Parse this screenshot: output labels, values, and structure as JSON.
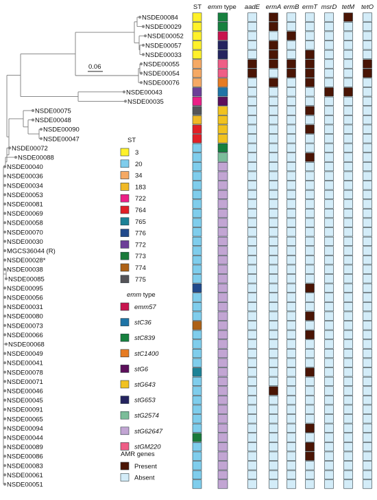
{
  "scale_bar_label": "0.06",
  "column_headers": {
    "st": "ST",
    "emm_a": "emm",
    "emm_b": " type",
    "amr": [
      "aadE",
      "ermA",
      "ermB",
      "ermT",
      "msrD",
      "tetM",
      "tetO"
    ]
  },
  "colors": {
    "present": "#4a1505",
    "absent": "#d3ecf8",
    "cell_border": "#2a3a40",
    "tree": "#7a7a7a",
    "leaf_dot": "#8a8a8a"
  },
  "st_colors": {
    "3": "#fff12a",
    "20": "#7fcdec",
    "34": "#f5a964",
    "183": "#f0b926",
    "722": "#ec1f86",
    "764": "#e11f26",
    "765": "#1c8296",
    "776": "#214a8c",
    "772": "#6c3f98",
    "773": "#1a7a3a",
    "774": "#ad6116",
    "775": "#555458"
  },
  "emm_colors": {
    "emm57": "#c8144e",
    "stC36": "#1e74a6",
    "stC839": "#16803e",
    "stC1400": "#e67b22",
    "stG6": "#5c0f5a",
    "stG643": "#f1c21f",
    "stG653": "#25245f",
    "stG2574": "#7bbd9a",
    "stG62647": "#c2a5d3",
    "stGM220": "#ef5d86"
  },
  "isolates": [
    {
      "name": "NSDE00084",
      "st": "3",
      "emm": "stC839",
      "amr": [
        0,
        1,
        0,
        0,
        0,
        1,
        0
      ]
    },
    {
      "name": "NSDE00029",
      "st": "3",
      "emm": "stC839",
      "amr": [
        0,
        1,
        0,
        0,
        0,
        0,
        0
      ]
    },
    {
      "name": "NSDE00052",
      "st": "3",
      "emm": "emm57",
      "amr": [
        0,
        0,
        1,
        0,
        0,
        0,
        0
      ]
    },
    {
      "name": "NSDE00057",
      "st": "3",
      "emm": "stG653",
      "amr": [
        0,
        1,
        0,
        0,
        0,
        0,
        0
      ]
    },
    {
      "name": "NSDE00033",
      "st": "3",
      "emm": "stG653",
      "amr": [
        0,
        1,
        0,
        1,
        0,
        0,
        0
      ]
    },
    {
      "name": "NSDE00055",
      "st": "34",
      "emm": "stGM220",
      "amr": [
        1,
        1,
        1,
        1,
        0,
        0,
        1
      ]
    },
    {
      "name": "NSDE00054",
      "st": "34",
      "emm": "stGM220",
      "amr": [
        1,
        0,
        1,
        1,
        0,
        0,
        1
      ]
    },
    {
      "name": "NSDE00076",
      "st": "34",
      "emm": "stC1400",
      "amr": [
        0,
        1,
        0,
        1,
        0,
        0,
        0
      ]
    },
    {
      "name": "NSDE00043",
      "st": "772",
      "emm": "stC36",
      "amr": [
        0,
        0,
        0,
        0,
        1,
        1,
        0
      ]
    },
    {
      "name": "NSDE00035",
      "st": "722",
      "emm": "stG6",
      "amr": [
        0,
        0,
        0,
        0,
        0,
        0,
        0
      ]
    },
    {
      "name": "NSDE00075",
      "st": "775",
      "emm": "stG643",
      "amr": [
        0,
        0,
        0,
        1,
        0,
        0,
        0
      ]
    },
    {
      "name": "NSDE00048",
      "st": "183",
      "emm": "stG643",
      "amr": [
        0,
        0,
        0,
        0,
        0,
        0,
        0
      ]
    },
    {
      "name": "NSDE00090",
      "st": "764",
      "emm": "stG643",
      "amr": [
        0,
        0,
        0,
        1,
        0,
        0,
        0
      ]
    },
    {
      "name": "NSDE00047",
      "st": "764",
      "emm": "stG643",
      "amr": [
        0,
        0,
        0,
        0,
        0,
        0,
        0
      ]
    },
    {
      "name": "NSDE00072",
      "st": "20",
      "emm": "stC839",
      "amr": [
        0,
        0,
        0,
        0,
        0,
        0,
        0
      ]
    },
    {
      "name": "NSDE00088",
      "st": "20",
      "emm": "stG2574",
      "amr": [
        0,
        0,
        0,
        1,
        0,
        0,
        0
      ]
    },
    {
      "name": "NSDE00040",
      "st": "20",
      "emm": "stG62647",
      "amr": [
        0,
        0,
        0,
        0,
        0,
        0,
        0
      ]
    },
    {
      "name": "NSDE00036",
      "st": "20",
      "emm": "stG62647",
      "amr": [
        0,
        0,
        0,
        0,
        0,
        0,
        0
      ]
    },
    {
      "name": "NSDE00034",
      "st": "20",
      "emm": "stG62647",
      "amr": [
        0,
        0,
        0,
        0,
        0,
        0,
        0
      ]
    },
    {
      "name": "NSDE00053",
      "st": "20",
      "emm": "stG62647",
      "amr": [
        0,
        0,
        0,
        0,
        0,
        0,
        0
      ]
    },
    {
      "name": "NSDE00081",
      "st": "20",
      "emm": "stG62647",
      "amr": [
        0,
        0,
        0,
        0,
        0,
        0,
        0
      ]
    },
    {
      "name": "NSDE00069",
      "st": "20",
      "emm": "stG62647",
      "amr": [
        0,
        0,
        0,
        0,
        0,
        0,
        0
      ]
    },
    {
      "name": "NSDE00058",
      "st": "20",
      "emm": "stG62647",
      "amr": [
        0,
        0,
        0,
        0,
        0,
        0,
        0
      ]
    },
    {
      "name": "NSDE00070",
      "st": "20",
      "emm": "stG62647",
      "amr": [
        0,
        0,
        0,
        0,
        0,
        0,
        0
      ]
    },
    {
      "name": "NSDE00030",
      "st": "20",
      "emm": "stG62647",
      "amr": [
        0,
        0,
        0,
        0,
        0,
        0,
        0
      ]
    },
    {
      "name": "MGCS36044 (R)",
      "st": "20",
      "emm": "stG62647",
      "amr": [
        0,
        0,
        0,
        0,
        0,
        0,
        0
      ]
    },
    {
      "name": "NSDE00028*",
      "st": "20",
      "emm": "stG62647",
      "amr": [
        0,
        0,
        0,
        0,
        0,
        0,
        0
      ]
    },
    {
      "name": "NSDE00038",
      "st": "20",
      "emm": "stG62647",
      "amr": [
        0,
        0,
        0,
        0,
        0,
        0,
        0
      ]
    },
    {
      "name": "NSDE00085",
      "st": "20",
      "emm": "stG62647",
      "amr": [
        0,
        0,
        0,
        0,
        0,
        0,
        0
      ]
    },
    {
      "name": "NSDE00095",
      "st": "776",
      "emm": "stG62647",
      "amr": [
        0,
        0,
        0,
        1,
        0,
        0,
        0
      ]
    },
    {
      "name": "NSDE00056",
      "st": "20",
      "emm": "stG62647",
      "amr": [
        0,
        0,
        0,
        0,
        0,
        0,
        0
      ]
    },
    {
      "name": "NSDE00031",
      "st": "20",
      "emm": "stG62647",
      "amr": [
        0,
        0,
        0,
        0,
        0,
        0,
        0
      ]
    },
    {
      "name": "NSDE00080",
      "st": "20",
      "emm": "stG62647",
      "amr": [
        0,
        0,
        0,
        1,
        0,
        0,
        0
      ]
    },
    {
      "name": "NSDE00073",
      "st": "774",
      "emm": "stG62647",
      "amr": [
        0,
        0,
        0,
        0,
        0,
        0,
        0
      ]
    },
    {
      "name": "NSDE00066",
      "st": "20",
      "emm": "stG62647",
      "amr": [
        0,
        0,
        0,
        1,
        0,
        0,
        0
      ]
    },
    {
      "name": "NSDE00068",
      "st": "20",
      "emm": "stG62647",
      "amr": [
        0,
        0,
        0,
        0,
        0,
        0,
        0
      ]
    },
    {
      "name": "NSDE00049",
      "st": "20",
      "emm": "stG62647",
      "amr": [
        0,
        0,
        0,
        0,
        0,
        0,
        0
      ]
    },
    {
      "name": "NSDE00041",
      "st": "20",
      "emm": "stG62647",
      "amr": [
        0,
        0,
        0,
        0,
        0,
        0,
        0
      ]
    },
    {
      "name": "NSDE00078",
      "st": "765",
      "emm": "stG62647",
      "amr": [
        0,
        0,
        0,
        1,
        0,
        0,
        0
      ]
    },
    {
      "name": "NSDE00071",
      "st": "20",
      "emm": "stG62647",
      "amr": [
        0,
        0,
        0,
        0,
        0,
        0,
        0
      ]
    },
    {
      "name": "NSDE00046",
      "st": "20",
      "emm": "stG62647",
      "amr": [
        0,
        1,
        0,
        0,
        0,
        0,
        0
      ]
    },
    {
      "name": "NSDE00045",
      "st": "20",
      "emm": "stG62647",
      "amr": [
        0,
        0,
        0,
        0,
        0,
        0,
        0
      ]
    },
    {
      "name": "NSDE00091",
      "st": "20",
      "emm": "stG62647",
      "amr": [
        0,
        0,
        0,
        0,
        0,
        0,
        0
      ]
    },
    {
      "name": "NSDE00065",
      "st": "20",
      "emm": "stG62647",
      "amr": [
        0,
        0,
        0,
        0,
        0,
        0,
        0
      ]
    },
    {
      "name": "NSDE00094",
      "st": "20",
      "emm": "stG62647",
      "amr": [
        0,
        0,
        0,
        1,
        0,
        0,
        0
      ]
    },
    {
      "name": "NSDE00044",
      "st": "773",
      "emm": "stG62647",
      "amr": [
        0,
        0,
        0,
        0,
        0,
        0,
        0
      ]
    },
    {
      "name": "NSDE00089",
      "st": "20",
      "emm": "stG62647",
      "amr": [
        0,
        0,
        0,
        1,
        0,
        0,
        0
      ]
    },
    {
      "name": "NSDE00086",
      "st": "20",
      "emm": "stG62647",
      "amr": [
        0,
        0,
        0,
        1,
        0,
        0,
        0
      ]
    },
    {
      "name": "NSDE00083",
      "st": "20",
      "emm": "stG62647",
      "amr": [
        0,
        0,
        0,
        0,
        0,
        0,
        0
      ]
    },
    {
      "name": "NSDE00061",
      "st": "20",
      "emm": "stG62647",
      "amr": [
        0,
        0,
        0,
        0,
        0,
        0,
        0
      ]
    },
    {
      "name": "NSDE00051",
      "st": "20",
      "emm": "stG62647",
      "amr": [
        0,
        0,
        0,
        0,
        0,
        0,
        0
      ]
    }
  ],
  "legend": {
    "st_title": "ST",
    "st_items": [
      "3",
      "20",
      "34",
      "183",
      "722",
      "764",
      "765",
      "776",
      "772",
      "773",
      "774",
      "775"
    ],
    "emm_title": "emm type",
    "emm_items": [
      "emm57",
      "stC36",
      "stC839",
      "stC1400",
      "stG6",
      "stG643",
      "stG653",
      "stG2574",
      "stG62647",
      "stGM220"
    ],
    "amr_title": "AMR genes",
    "amr_items": [
      "Present",
      "Absent"
    ]
  }
}
